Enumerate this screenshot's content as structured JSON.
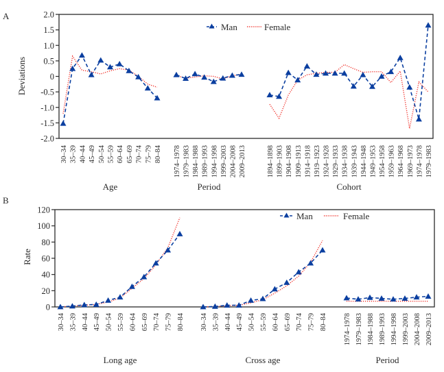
{
  "colors": {
    "man": "#0b3fa0",
    "female": "#f0312a",
    "axis": "#2a2a2a"
  },
  "legend": {
    "man": "Man",
    "female": "Female"
  },
  "chart_data": [
    {
      "type": "line",
      "panel_label": "A",
      "ylabel": "Deviations",
      "ylim": [
        -2.0,
        2.0
      ],
      "yticks": [
        "2.0",
        "1.5",
        "1.0",
        "0.5",
        "0",
        "-0.5",
        "-1.0",
        "-1.5",
        "-2.0"
      ],
      "ytick_values": [
        2.0,
        1.5,
        1.0,
        0.5,
        0,
        -0.5,
        -1.0,
        -1.5,
        -2.0
      ],
      "legend_position": "top-center",
      "groups": [
        {
          "xlabel": "Age",
          "categories": [
            "30–34",
            "35–39",
            "40–44",
            "45–49",
            "50–54",
            "55–59",
            "60–64",
            "65–69",
            "70–74",
            "75–79",
            "80–84"
          ],
          "series": [
            {
              "name": "Man",
              "values": [
                -1.52,
                0.25,
                0.68,
                0.05,
                0.52,
                0.3,
                0.4,
                0.18,
                -0.02,
                -0.38,
                -0.7
              ]
            },
            {
              "name": "Female",
              "values": [
                -1.2,
                0.65,
                0.2,
                0.15,
                0.08,
                0.18,
                0.25,
                0.2,
                0.0,
                -0.25,
                -0.35
              ]
            }
          ]
        },
        {
          "xlabel": "Period",
          "categories": [
            "1974–1978",
            "1979–1983",
            "1984–1988",
            "1989–1993",
            "1994–1998",
            "1999–2003",
            "2004–2008",
            "2009–2013"
          ],
          "series": [
            {
              "name": "Man",
              "values": [
                0.05,
                -0.07,
                0.08,
                -0.03,
                -0.17,
                -0.06,
                0.03,
                0.06
              ]
            },
            {
              "name": "Female",
              "values": [
                0.03,
                -0.06,
                -0.02,
                0.02,
                0.0,
                -0.08,
                0.02,
                0.07
              ]
            }
          ]
        },
        {
          "xlabel": "Cohort",
          "categories": [
            "1894–1898",
            "1899–1903",
            "1904–1908",
            "1909–1913",
            "1914–1918",
            "1919–1923",
            "1924–1928",
            "1929–1933",
            "1934–1938",
            "1939–1943",
            "1944–1948",
            "1949–1953",
            "1954–1958",
            "1959–1963",
            "1964–1968",
            "1969–1973",
            "1974–1978",
            "1979–1983"
          ],
          "series": [
            {
              "name": "Man",
              "values": [
                -0.6,
                -0.65,
                0.12,
                -0.12,
                0.33,
                0.06,
                0.1,
                0.1,
                0.1,
                -0.32,
                0.05,
                -0.33,
                0.0,
                0.15,
                0.6,
                -0.35,
                -1.38,
                1.65
              ]
            },
            {
              "name": "Female",
              "values": [
                -0.9,
                -1.35,
                -0.6,
                -0.12,
                0.05,
                0.1,
                0.13,
                0.13,
                0.38,
                0.25,
                0.13,
                0.15,
                0.15,
                -0.2,
                0.17,
                -1.68,
                -0.18,
                -0.5
              ]
            }
          ]
        }
      ]
    },
    {
      "type": "line",
      "panel_label": "B",
      "ylabel": "Rate",
      "ylim": [
        0,
        120
      ],
      "yticks": [
        "120",
        "100",
        "80",
        "60",
        "40",
        "20",
        "0"
      ],
      "ytick_values": [
        120,
        100,
        80,
        60,
        40,
        20,
        0
      ],
      "legend_position": "top-right",
      "groups": [
        {
          "xlabel": "Long age",
          "categories": [
            "30–34",
            "35–39",
            "40–44",
            "45–49",
            "50–54",
            "55–59",
            "60–64",
            "65–69",
            "70–74",
            "75–79",
            "80–84"
          ],
          "series": [
            {
              "name": "Man",
              "values": [
                0,
                1,
                2.5,
                3,
                8,
                12,
                25,
                37,
                54,
                70,
                90
              ]
            },
            {
              "name": "Female",
              "values": [
                0,
                1,
                2,
                3,
                6,
                11,
                23,
                35,
                52,
                73,
                110
              ]
            }
          ]
        },
        {
          "xlabel": "Cross age",
          "categories": [
            "30–34",
            "35–39",
            "40–44",
            "45–49",
            "50–54",
            "55–59",
            "60–64",
            "65–69",
            "70–74",
            "75–79",
            "80–84"
          ],
          "series": [
            {
              "name": "Man",
              "values": [
                0,
                0.5,
                2,
                2,
                8,
                10,
                22,
                30,
                43,
                54,
                70
              ]
            },
            {
              "name": "Female",
              "values": [
                0,
                0.5,
                1.5,
                2,
                5,
                9,
                17,
                26,
                38,
                55,
                82
              ]
            }
          ]
        },
        {
          "xlabel": "Period",
          "categories": [
            "1974–1978",
            "1979–1983",
            "1984–1988",
            "1989–1993",
            "1994–1998",
            "1999–2003",
            "2004–2008",
            "2009–2013"
          ],
          "series": [
            {
              "name": "Man",
              "values": [
                11,
                9.5,
                11.5,
                10.5,
                9.5,
                10.5,
                12,
                13
              ]
            },
            {
              "name": "Female",
              "values": [
                7,
                7,
                7,
                7,
                7,
                7,
                7,
                7
              ]
            }
          ]
        }
      ]
    }
  ]
}
